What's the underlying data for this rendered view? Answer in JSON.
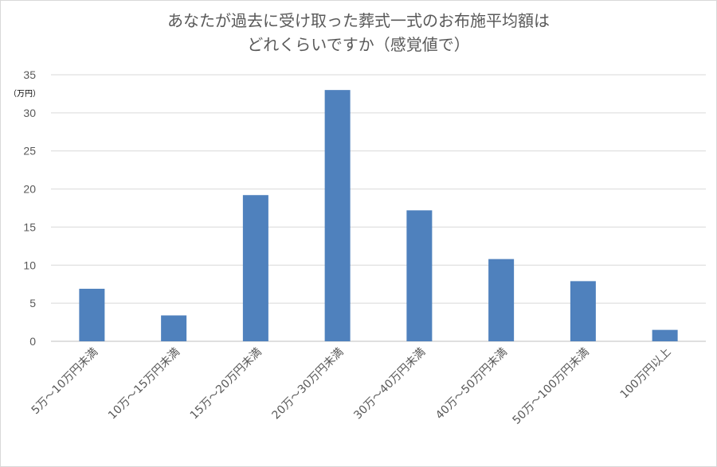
{
  "chart_data": {
    "type": "bar",
    "title_line1": "あなたが過去に受け取った葬式一式のお布施平均額は",
    "title_line2": "どれくらいですか（感覚値で）",
    "ylabel": "（万円）",
    "ylim": [
      0,
      35
    ],
    "yticks": [
      0,
      5,
      10,
      15,
      20,
      25,
      30,
      35
    ],
    "grid": true,
    "categories": [
      "5万～10万円未満",
      "10万～15万円未満",
      "15万～20万円未満",
      "20万～30万円未満",
      "30万～40万円未満",
      "40万～50万円未満",
      "50万～100万円未満",
      "100万円以上"
    ],
    "values": [
      6.9,
      3.4,
      19.2,
      33.0,
      17.2,
      10.8,
      7.9,
      1.5
    ],
    "bar_color": "#4f81bd"
  }
}
